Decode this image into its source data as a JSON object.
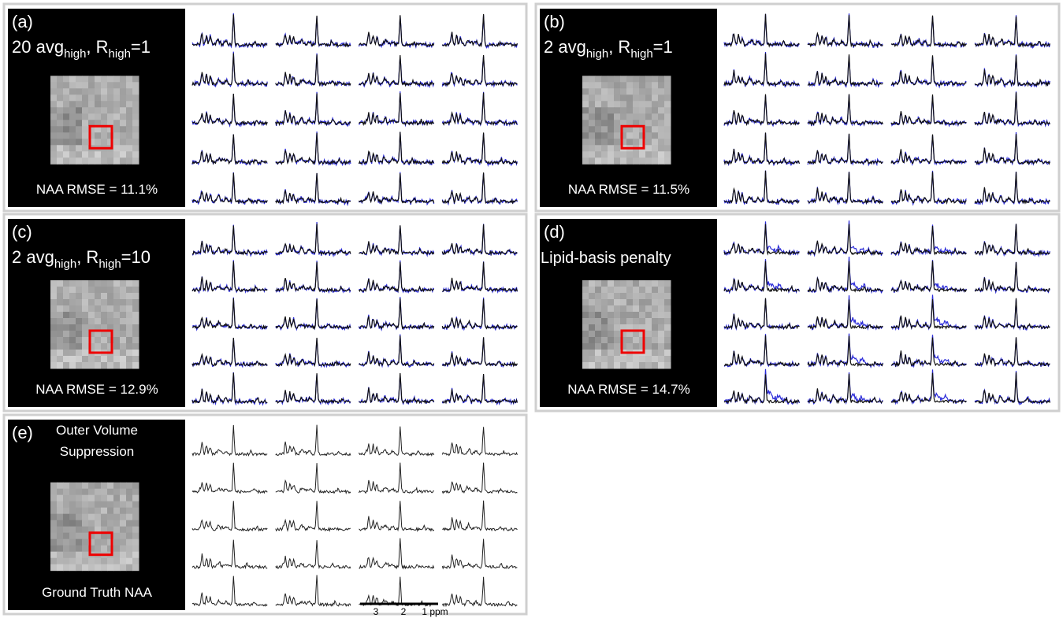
{
  "panels": [
    {
      "label": "(a)",
      "title": [
        "20 avg",
        "high",
        ", R",
        "high",
        "=1"
      ],
      "caption": "NAA RMSE = 11.1%"
    },
    {
      "label": "(b)",
      "title": [
        "2 avg",
        "high",
        ", R",
        "high",
        "=1"
      ],
      "caption": "NAA RMSE = 11.5%"
    },
    {
      "label": "(c)",
      "title": [
        "2 avg",
        "high",
        ", R",
        "high",
        "=10"
      ],
      "caption": "NAA RMSE = 12.9%"
    },
    {
      "label": "(d)",
      "title": [
        "Lipid-basis penalty"
      ],
      "caption": "NAA RMSE = 14.7%"
    },
    {
      "label": "(e)",
      "title_lines": [
        "Outer Volume",
        "Suppression"
      ],
      "caption": "Ground Truth NAA"
    }
  ],
  "scale_bar": {
    "labels": [
      "3",
      "2",
      "1 ppm"
    ]
  }
}
